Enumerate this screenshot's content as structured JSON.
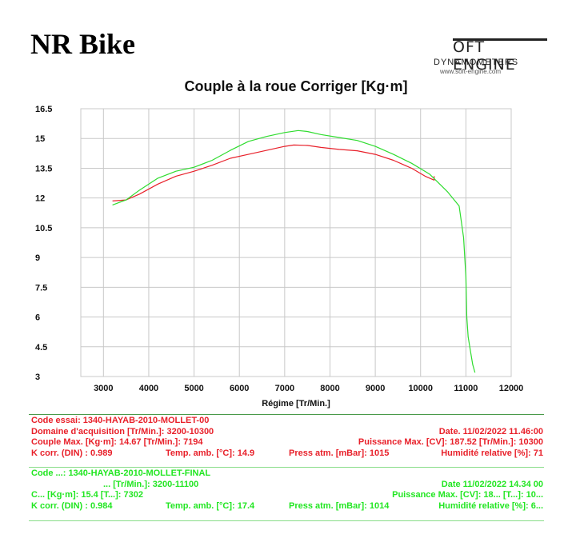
{
  "header": {
    "title": "NR Bike"
  },
  "logo": {
    "brand": "OFT ENGINE",
    "sub": "DYNAMOMETERS",
    "url": "www.soft-engine.com",
    "icon": "soft-engine-logo"
  },
  "colors": {
    "series_red": "#e8202a",
    "series_green": "#2fdc2f",
    "grid": "#c8c8c8",
    "axis_text": "#111111"
  },
  "chart_data": {
    "type": "line",
    "title": "Couple à la roue Corriger [Kg·m]",
    "xlabel": "Régime [Tr/Min.]",
    "ylabel": "",
    "xlim": [
      2500,
      12000
    ],
    "ylim": [
      3,
      16.5
    ],
    "xticks": [
      "3000",
      "4000",
      "5000",
      "6000",
      "7000",
      "8000",
      "9000",
      "10000",
      "11000",
      "12000"
    ],
    "yticks": [
      "3",
      "4.5",
      "6",
      "7.5",
      "9",
      "10.5",
      "12",
      "13.5",
      "15",
      "16.5"
    ],
    "grid": true,
    "legend": "none",
    "series": [
      {
        "color": "#e8202a",
        "x": [
          3200,
          3500,
          3800,
          4200,
          4600,
          5000,
          5400,
          5800,
          6200,
          6600,
          7000,
          7200,
          7500,
          7800,
          8200,
          8600,
          9000,
          9400,
          9800,
          10100,
          10300,
          10300
        ],
        "y": [
          11.85,
          11.9,
          12.2,
          12.7,
          13.1,
          13.35,
          13.65,
          14.0,
          14.2,
          14.4,
          14.6,
          14.67,
          14.65,
          14.55,
          14.45,
          14.38,
          14.2,
          13.9,
          13.5,
          13.1,
          12.9,
          13.1
        ]
      },
      {
        "color": "#2fdc2f",
        "x": [
          3200,
          3500,
          3800,
          4200,
          4600,
          5000,
          5400,
          5800,
          6200,
          6600,
          7000,
          7300,
          7500,
          7800,
          8200,
          8600,
          9000,
          9400,
          9800,
          10200,
          10600,
          10850,
          10950,
          11000,
          11020,
          11050,
          11100,
          11150,
          11200
        ],
        "y": [
          11.65,
          11.9,
          12.4,
          13.0,
          13.35,
          13.55,
          13.9,
          14.4,
          14.85,
          15.1,
          15.3,
          15.4,
          15.35,
          15.2,
          15.05,
          14.9,
          14.6,
          14.2,
          13.75,
          13.2,
          12.3,
          11.6,
          10.0,
          8.0,
          6.0,
          5.0,
          4.3,
          3.6,
          3.2
        ]
      }
    ]
  },
  "run1": {
    "code": "Code essai: 1340-HAYAB-2010-MOLLET-00",
    "domaine": "Domaine d'acquisition [Tr/Min.]: 3200-10300",
    "date": "Date. 11/02/2022   11.46:00",
    "couple": "Couple Max. [Kg·m]: 14.67   [Tr/Min.]: 7194",
    "puissance": "Puissance Max. [CV]: 187.52   [Tr/Min.]: 10300",
    "kcorr": "K corr. (DIN) : 0.989",
    "temp": "Temp. amb. [°C]: 14.9",
    "press": "Press atm. [mBar]: 1015",
    "humid": "Humidité relative [%]: 71"
  },
  "run2": {
    "code": "Code ...: 1340-HAYAB-2010-MOLLET-FINAL",
    "domaine": "...  [Tr/Min.]: 3200-11100",
    "date": "Date  11/02/2022   14.34 00",
    "couple": "C...   [Kg·m]: 15.4   [T...]: 7302",
    "puissance": "Puissance Max. [CV]: 18...   [T...]: 10...",
    "kcorr": "K corr. (DIN) : 0.984",
    "temp": "Temp. amb. [°C]: 17.4",
    "press": "Press atm. [mBar]: 1014",
    "humid": "Humidité relative [%]: 6..."
  }
}
